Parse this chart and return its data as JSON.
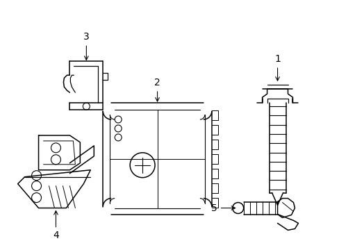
{
  "background_color": "#ffffff",
  "line_color": "#000000",
  "line_width": 1.1,
  "label_fontsize": 10,
  "figsize": [
    4.89,
    3.6
  ],
  "dpi": 100
}
